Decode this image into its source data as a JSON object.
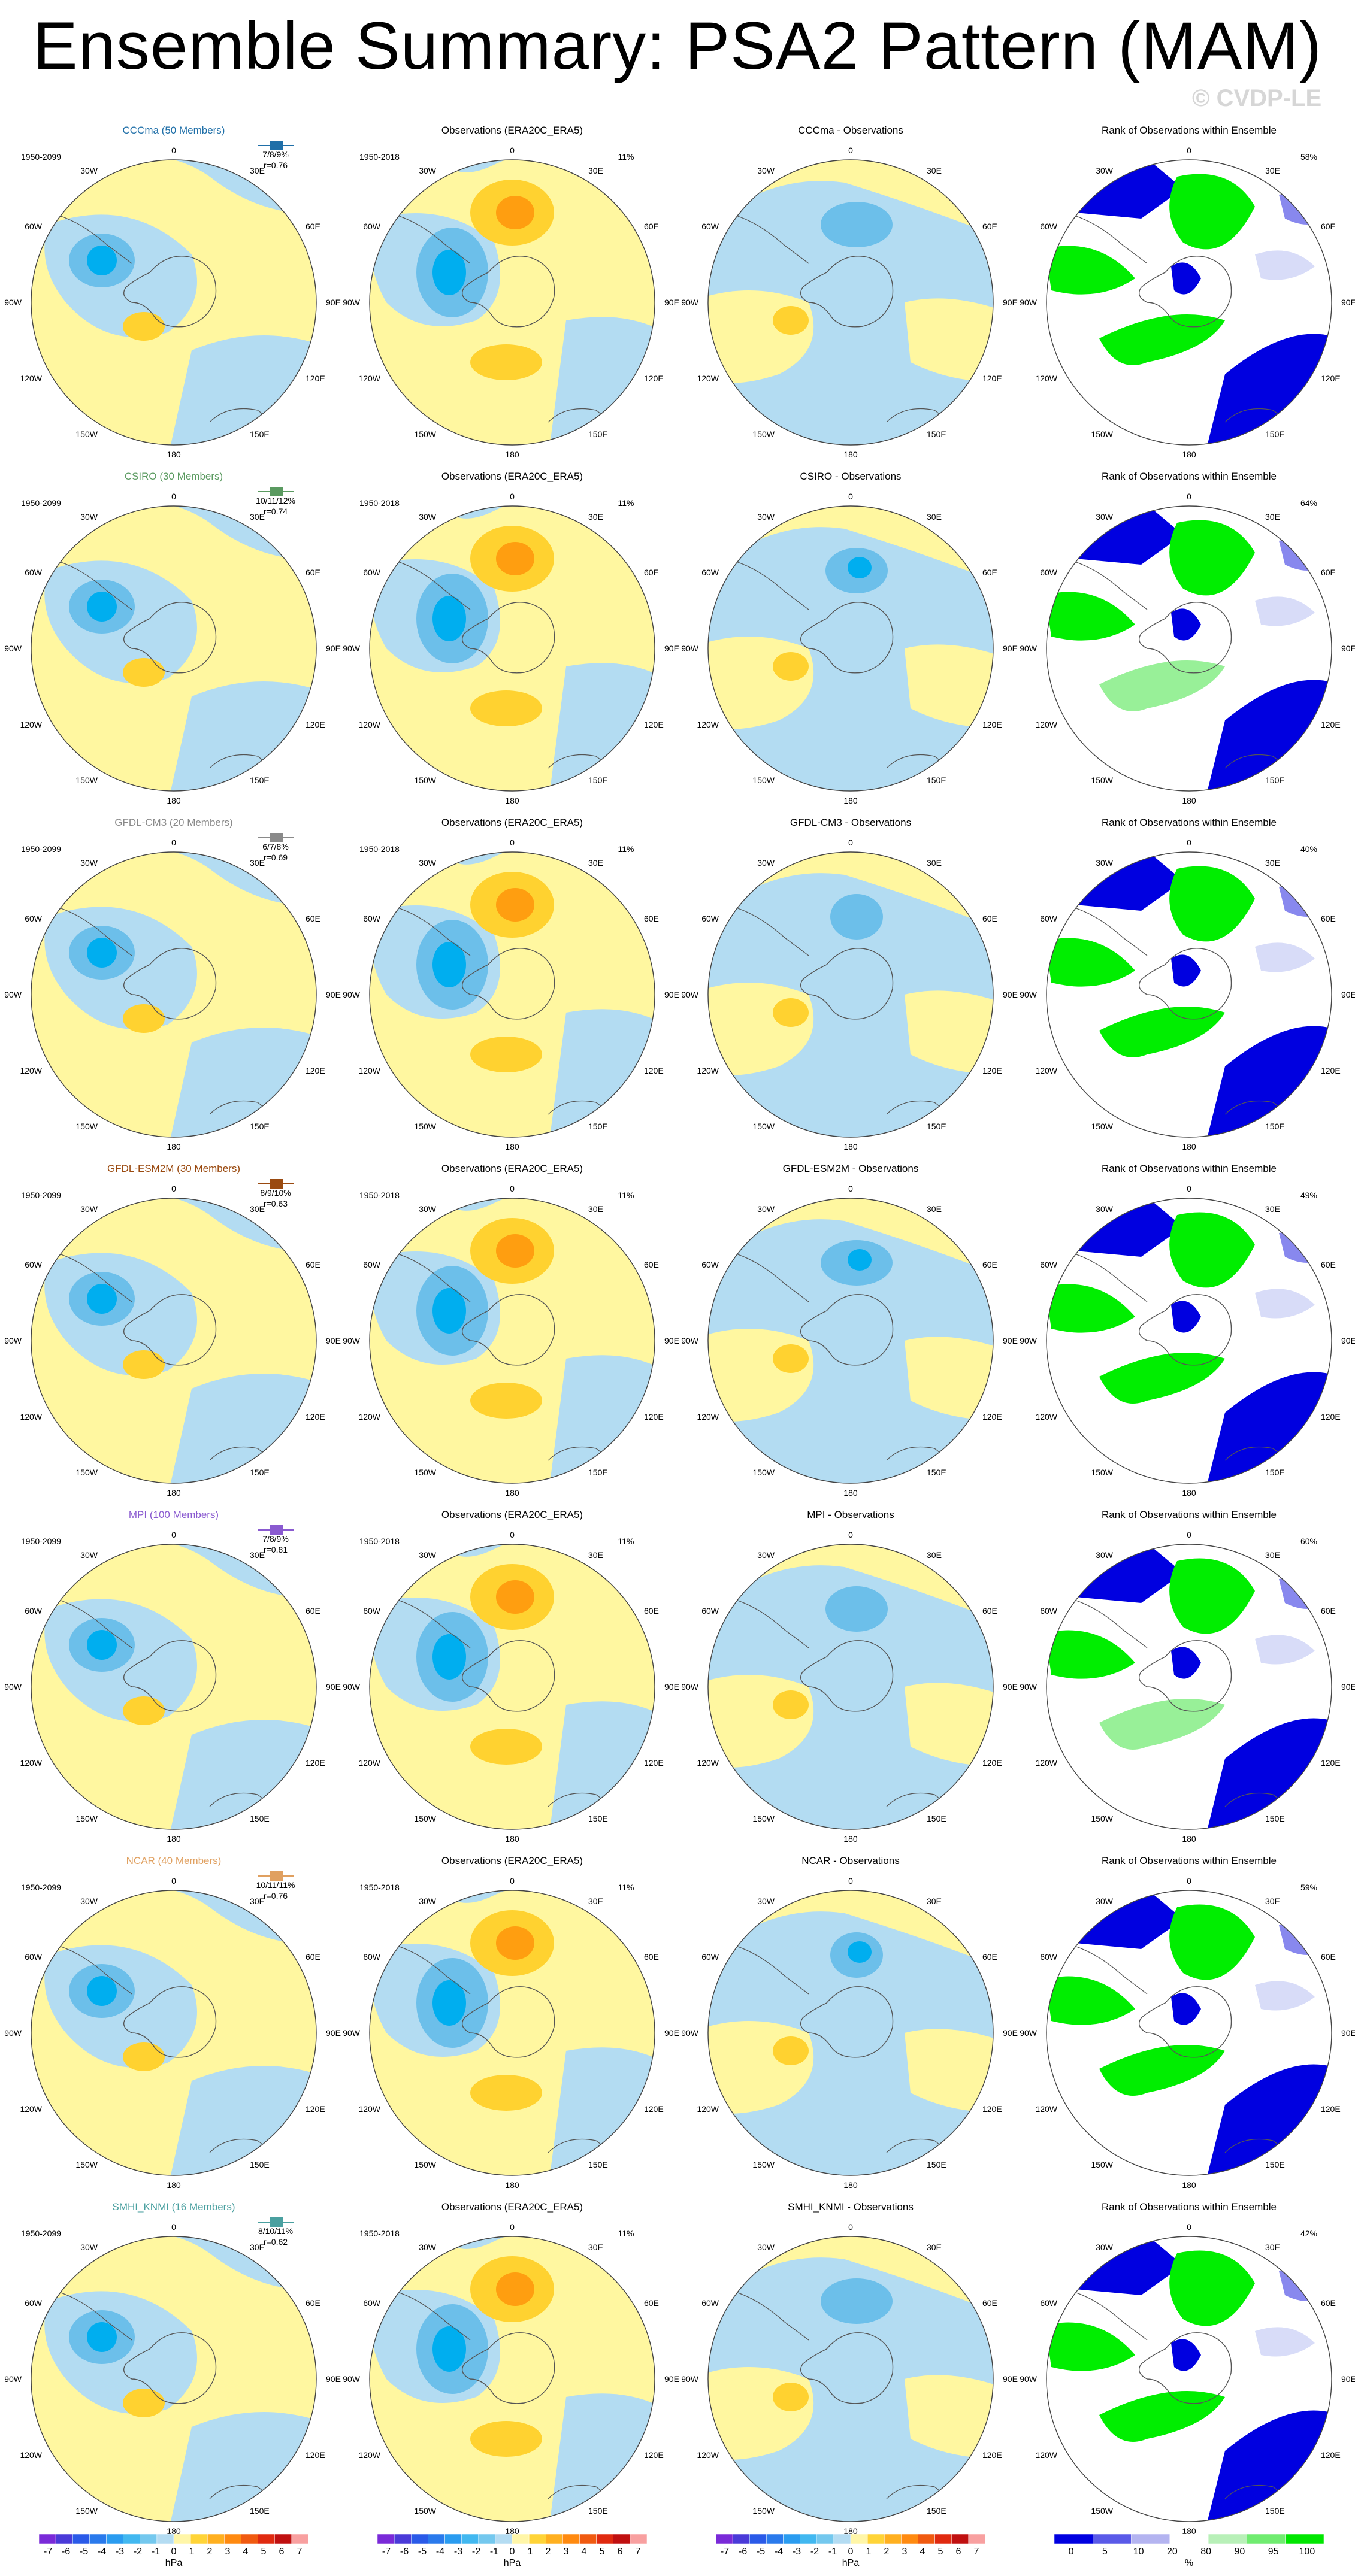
{
  "title": "Ensemble Summary: PSA2 Pattern (MAM)",
  "watermark": "© CVDP-LE",
  "colors": {
    "neg1": "#b3dcf2",
    "neg2": "#6cbfea",
    "neg3": "#00aeef",
    "pos1": "#fff7a0",
    "pos2": "#ffd230",
    "pos3": "#ff9e10",
    "rank_low": "#0000e0",
    "rank_lowmid": "#8888ee",
    "rank_mid": "#d8dcf8",
    "rank_high": "#00ee00",
    "rank_highmid": "#98f098",
    "ensemble_label_colors": {
      "CCCma": "#1f6fa8",
      "CSIRO": "#5a9a60",
      "GFDL-CM3": "#8a8a8a",
      "GFDL-ESM2M": "#9a4a10",
      "MPI": "#8a5ad0",
      "NCAR": "#e0a060",
      "SMHI_KNMI": "#4aa0a0"
    }
  },
  "lon_labels": [
    "0",
    "30E",
    "60E",
    "90E",
    "120E",
    "150E",
    "180",
    "150W",
    "120W",
    "90W",
    "60W",
    "30W"
  ],
  "rows": [
    {
      "model": "CCCma",
      "members_label": "CCCma (50 Members)",
      "period": "1950-2099",
      "pct_text": "7/8/9%",
      "r_text": "r=0.76",
      "obs_title": "Observations (ERA20C_ERA5)",
      "obs_period": "1950-2018",
      "obs_pct": "11%",
      "diff_title": "CCCma - Observations",
      "rank_title": "Rank of Observations within Ensemble",
      "rank_pct": "58%"
    },
    {
      "model": "CSIRO",
      "members_label": "CSIRO (30 Members)",
      "period": "1950-2099",
      "pct_text": "10/11/12%",
      "r_text": "r=0.74",
      "obs_title": "Observations (ERA20C_ERA5)",
      "obs_period": "1950-2018",
      "obs_pct": "11%",
      "diff_title": "CSIRO - Observations",
      "rank_title": "Rank of Observations within Ensemble",
      "rank_pct": "64%"
    },
    {
      "model": "GFDL-CM3",
      "members_label": "GFDL-CM3 (20 Members)",
      "period": "1950-2099",
      "pct_text": "6/7/8%",
      "r_text": "r=0.69",
      "obs_title": "Observations (ERA20C_ERA5)",
      "obs_period": "1950-2018",
      "obs_pct": "11%",
      "diff_title": "GFDL-CM3 - Observations",
      "rank_title": "Rank of Observations within Ensemble",
      "rank_pct": "40%"
    },
    {
      "model": "GFDL-ESM2M",
      "members_label": "GFDL-ESM2M (30 Members)",
      "period": "1950-2099",
      "pct_text": "8/9/10%",
      "r_text": "r=0.63",
      "obs_title": "Observations (ERA20C_ERA5)",
      "obs_period": "1950-2018",
      "obs_pct": "11%",
      "diff_title": "GFDL-ESM2M - Observations",
      "rank_title": "Rank of Observations within Ensemble",
      "rank_pct": "49%"
    },
    {
      "model": "MPI",
      "members_label": "MPI (100 Members)",
      "period": "1950-2099",
      "pct_text": "7/8/9%",
      "r_text": "r=0.81",
      "obs_title": "Observations (ERA20C_ERA5)",
      "obs_period": "1950-2018",
      "obs_pct": "11%",
      "diff_title": "MPI - Observations",
      "rank_title": "Rank of Observations within Ensemble",
      "rank_pct": "60%"
    },
    {
      "model": "NCAR",
      "members_label": "NCAR (40 Members)",
      "period": "1950-2099",
      "pct_text": "10/11/11%",
      "r_text": "r=0.76",
      "obs_title": "Observations (ERA20C_ERA5)",
      "obs_period": "1950-2018",
      "obs_pct": "11%",
      "diff_title": "NCAR - Observations",
      "rank_title": "Rank of Observations within Ensemble",
      "rank_pct": "59%"
    },
    {
      "model": "SMHI_KNMI",
      "members_label": "SMHI_KNMI (16 Members)",
      "period": "1950-2099",
      "pct_text": "8/10/11%",
      "r_text": "r=0.62",
      "obs_title": "Observations (ERA20C_ERA5)",
      "obs_period": "1950-2018",
      "obs_pct": "11%",
      "diff_title": "SMHI_KNMI - Observations",
      "rank_title": "Rank of Observations within Ensemble",
      "rank_pct": "42%"
    }
  ],
  "colorbar_hpa": {
    "unit": "hPa",
    "ticks": [
      "-7",
      "-6",
      "-5",
      "-4",
      "-3",
      "-2",
      "-1",
      "0",
      "1",
      "2",
      "3",
      "4",
      "5",
      "6",
      "7"
    ],
    "colors": [
      "#7a2ad8",
      "#4a3ad8",
      "#2a5ae8",
      "#2a7aec",
      "#2a9cf0",
      "#42b8f0",
      "#74c8ee",
      "#b4dcf2",
      "#fff6a8",
      "#ffd438",
      "#ffb020",
      "#ff8a10",
      "#f05a10",
      "#e02a10",
      "#c01010",
      "#f8a0a0"
    ]
  },
  "colorbar_rank": {
    "unit": "%",
    "ticks": [
      "0",
      "5",
      "10",
      "20",
      "80",
      "90",
      "95",
      "100"
    ],
    "colors": [
      "#0000e0",
      "#5a5ae8",
      "#b4b4f0",
      "#ffffff",
      "#b8f0b8",
      "#70ec70",
      "#00e600"
    ]
  }
}
